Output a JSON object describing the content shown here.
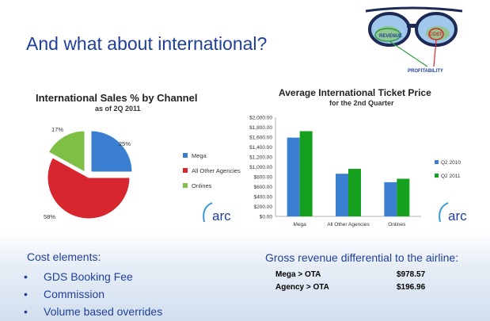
{
  "slide": {
    "title": "And what about international?"
  },
  "glasses": {
    "left_label": "REVENUE",
    "right_label": "COST",
    "bottom_label": "PROFITABILITY"
  },
  "logo_text": "arc",
  "colors": {
    "blue": "#3a7fd0",
    "red": "#d8262e",
    "green": "#7ec045",
    "dark_green": "#15a01e",
    "title_blue": "#1f3f99"
  },
  "chart_data": [
    {
      "type": "pie",
      "title": "International Sales % by Channel",
      "subtitle": "as of 2Q 2011",
      "slices": [
        {
          "name": "Mega",
          "value": 25,
          "label": "25%",
          "color": "#3a7fd0"
        },
        {
          "name": "All Other Agencies",
          "value": 58,
          "label": "58%",
          "color": "#d8262e"
        },
        {
          "name": "Onlines",
          "value": 17,
          "label": "17%",
          "color": "#7ec045"
        }
      ],
      "legend_position": "right"
    },
    {
      "type": "bar",
      "title": "Average International Ticket Price",
      "subtitle": "for the 2nd Quarter",
      "categories": [
        "Mega",
        "All Other Agencies",
        "Onlines"
      ],
      "series": [
        {
          "name": "Q2 2010",
          "values": [
            1590,
            860,
            690
          ],
          "color": "#3a7fd0"
        },
        {
          "name": "Q2 2011",
          "values": [
            1720,
            960,
            760
          ],
          "color": "#15a01e"
        }
      ],
      "ylim": [
        0,
        2000
      ],
      "yticks": [
        "$0.00",
        "$200.00",
        "$400.00",
        "$600.00",
        "$800.00",
        "$1,000.00",
        "$1,200.00",
        "$1,400.00",
        "$1,600.00",
        "$1,800.00",
        "$2,000.00"
      ],
      "grid": false,
      "legend_position": "right"
    }
  ],
  "cost": {
    "heading": "Cost elements:",
    "items": [
      "GDS Booking Fee",
      "Commission",
      "Volume based overrides"
    ]
  },
  "revenue": {
    "heading": "Gross revenue differential to the airline:",
    "rows": [
      {
        "label": "Mega > OTA",
        "value": "$978.57"
      },
      {
        "label": "Agency > OTA",
        "value": "$196.96"
      }
    ]
  }
}
